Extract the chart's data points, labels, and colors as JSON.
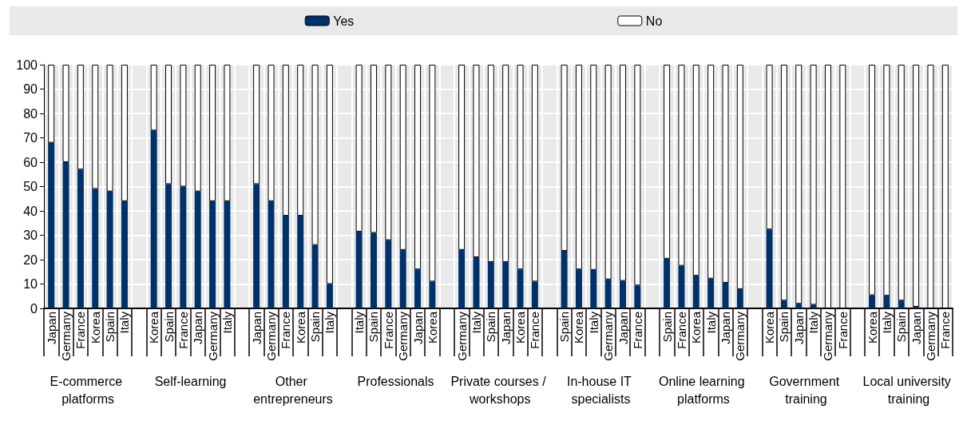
{
  "chart_data": {
    "type": "bar",
    "stacked": true,
    "grid": true,
    "legend": "top",
    "categories": [
      "Japan",
      "Germany",
      "France",
      "Korea",
      "Spain",
      "Italy",
      null,
      "Korea",
      "Spain",
      "France",
      "Japan",
      "Germany",
      "Italy",
      null,
      "Japan",
      "Germany",
      "France",
      "Korea",
      "Spain",
      "Italy",
      null,
      "Italy",
      "Spain",
      "France",
      "Germany",
      "Japan",
      "Korea",
      null,
      "Germany",
      "Italy",
      "Spain",
      "Japan",
      "Korea",
      "France",
      null,
      "Spain",
      "Korea",
      "Italy",
      "Germany",
      "Japan",
      "France",
      null,
      "Spain",
      "France",
      "Korea",
      "Italy",
      "Japan",
      "Germany",
      null,
      "Korea",
      "Spain",
      "Japan",
      "Italy",
      "Germany",
      "France",
      null,
      "Korea",
      "Italy",
      "Spain",
      "Japan",
      "Germany",
      "France"
    ],
    "series": [
      {
        "name": "Yes",
        "color": "#00316a",
        "values": [
          68,
          60,
          57,
          49,
          48,
          44,
          null,
          73,
          51,
          50,
          48,
          44,
          44,
          null,
          51,
          44,
          38,
          38,
          26,
          10,
          null,
          31.5,
          31,
          28,
          24,
          16,
          11,
          null,
          24,
          21,
          19,
          19,
          16,
          11,
          null,
          23.6,
          16,
          15.8,
          11.9,
          11.3,
          9.4,
          null,
          20.4,
          17.5,
          13.4,
          12.2,
          10.5,
          7.9,
          null,
          32.4,
          3.2,
          1.9,
          1.5,
          0,
          0,
          null,
          5.4,
          5.2,
          3.2,
          0.7,
          0,
          0
        ]
      },
      {
        "name": "No",
        "color": "#ffffff",
        "values": [
          32,
          40,
          43,
          51,
          52,
          56,
          null,
          27,
          49,
          50,
          52,
          56,
          56,
          null,
          49,
          56,
          62,
          62,
          74,
          90,
          null,
          68.5,
          69,
          72,
          76,
          84,
          89,
          null,
          76,
          79,
          81,
          81,
          84,
          89,
          null,
          76.4,
          84,
          84.2,
          88.1,
          88.7,
          90.6,
          null,
          79.6,
          82.5,
          86.6,
          87.8,
          89.5,
          92.1,
          null,
          67.6,
          96.8,
          98.1,
          98.5,
          100,
          100,
          null,
          94.6,
          94.8,
          96.8,
          99.3,
          100,
          100
        ]
      }
    ],
    "ylim": [
      0,
      100
    ],
    "yticks": [
      0,
      10,
      20,
      30,
      40,
      50,
      60,
      70,
      80,
      90,
      100
    ],
    "annotations": [
      "E-commerce platforms",
      "Self-learning",
      "Other entrepreneurs",
      "Professionals",
      "Private courses / workshops",
      "In-house IT specialists",
      "Online learning platforms",
      "Government training",
      "Local university training"
    ]
  }
}
